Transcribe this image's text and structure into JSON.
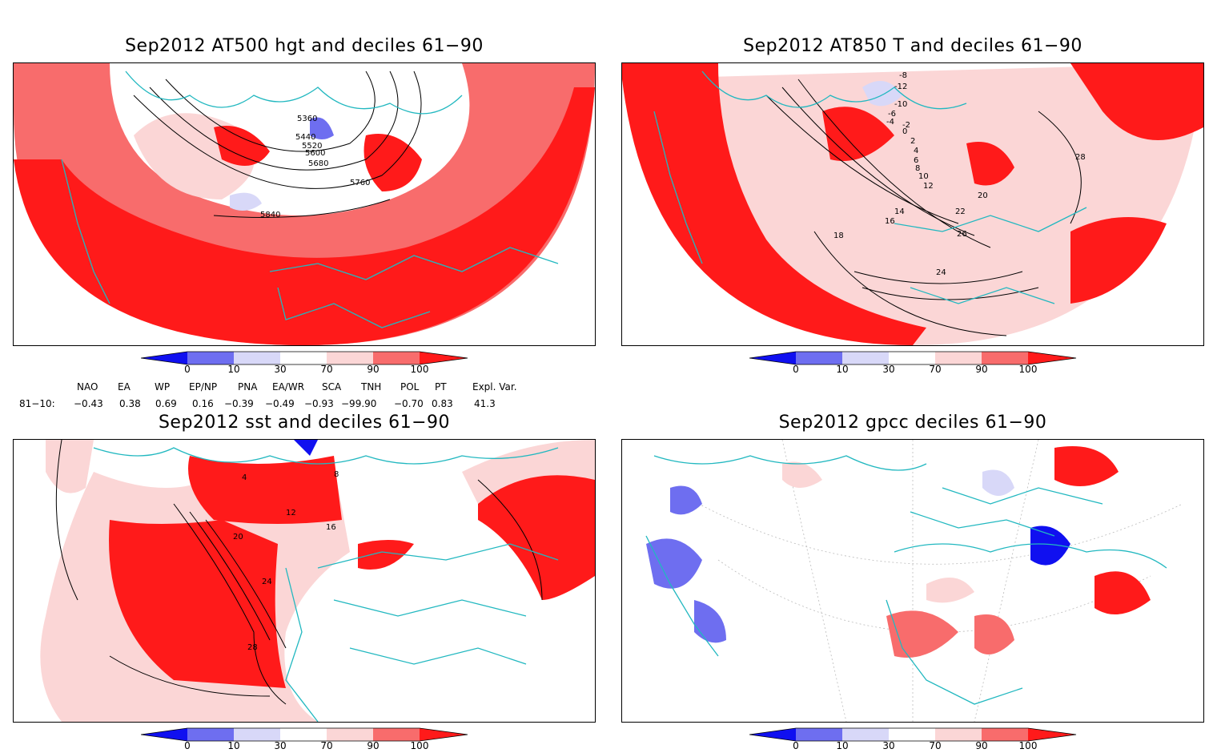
{
  "colors": {
    "deep_red": "#ff1a1a",
    "mid_red": "#f86c6c",
    "light_red": "#fbd6d6",
    "light_blue": "#d8d8f8",
    "mid_blue": "#6e6ef0",
    "deep_blue": "#1010f0",
    "coast": "#22b8c0",
    "contour": "#000000"
  },
  "panels": [
    {
      "title": "Sep2012 AT500 hgt and deciles 61−90",
      "contour_labels": [
        "5360",
        "5440",
        "5520",
        "5600",
        "5680",
        "5760",
        "5840"
      ]
    },
    {
      "title": "Sep2012 AT850 T and deciles 61−90",
      "contour_labels": [
        "-8",
        "-12",
        "-10",
        "-6",
        "-4",
        "-2",
        "0",
        "2",
        "4",
        "6",
        "8",
        "10",
        "12",
        "14",
        "16",
        "18",
        "20",
        "22",
        "24",
        "26",
        "28"
      ]
    },
    {
      "title": "Sep2012 sst and deciles 61−90",
      "contour_labels": [
        "4",
        "8",
        "12",
        "16",
        "20",
        "24",
        "28"
      ]
    },
    {
      "title": "Sep2012 gpcc deciles 61−90",
      "contour_labels": []
    }
  ],
  "colorbar": {
    "ticks": [
      "0",
      "10",
      "30",
      "70",
      "90",
      "100"
    ]
  },
  "indices": {
    "headers": [
      "NAO",
      "EA",
      "WP",
      "EP/NP",
      "PNA",
      "EA/WR",
      "SCA",
      "TNH",
      "POL",
      "PT",
      "Expl. Var."
    ],
    "row_label": "81−10:",
    "values": [
      "−0.43",
      "0.38",
      "0.69",
      "0.16",
      "−0.39",
      "−0.49",
      "−0.93",
      "−99.90",
      "−0.70",
      "0.83",
      "41.3"
    ]
  }
}
